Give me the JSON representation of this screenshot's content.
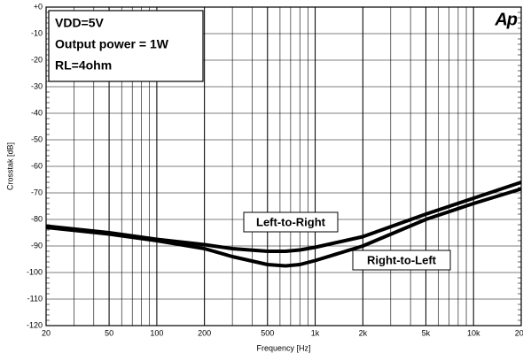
{
  "chart_data": {
    "type": "line",
    "annotations": [
      "VDD=5V",
      "Output power = 1W",
      "RL=4ohm"
    ],
    "logo": "Ap",
    "xlabel": "Frequency [Hz]",
    "ylabel": "Crosstak [dB]",
    "xscale": "log",
    "grid": true,
    "x": [
      20,
      50,
      100,
      200,
      300,
      500,
      650,
      800,
      1000,
      2000,
      5000,
      10000,
      20000
    ],
    "series": [
      {
        "name": "Left-to-Right",
        "color": "#000000",
        "values": [
          -82.5,
          -85,
          -87.5,
          -89.5,
          -91,
          -92,
          -92,
          -91.5,
          -90.5,
          -86.5,
          -78,
          -72,
          -66
        ]
      },
      {
        "name": "Right-to-Left",
        "color": "#000000",
        "values": [
          -83,
          -85.5,
          -88,
          -91,
          -94,
          -97,
          -97.5,
          -97,
          -95.5,
          -90,
          -80,
          -74,
          -68.5
        ]
      }
    ],
    "xlim": [
      20,
      20000
    ],
    "xticks": [
      20,
      50,
      100,
      200,
      500,
      {
        "value": 1000,
        "label": "1k"
      },
      {
        "value": 2000,
        "label": "2k"
      },
      {
        "value": 5000,
        "label": "5k"
      },
      {
        "value": 10000,
        "label": "10k"
      },
      {
        "value": 20000,
        "label": "20k"
      }
    ],
    "ylim": [
      -120,
      0
    ],
    "yticks": [
      -120,
      -110,
      -100,
      -90,
      -80,
      -70,
      -60,
      -50,
      -40,
      -30,
      -20,
      -10,
      {
        "value": 0,
        "label": "+0"
      }
    ]
  }
}
